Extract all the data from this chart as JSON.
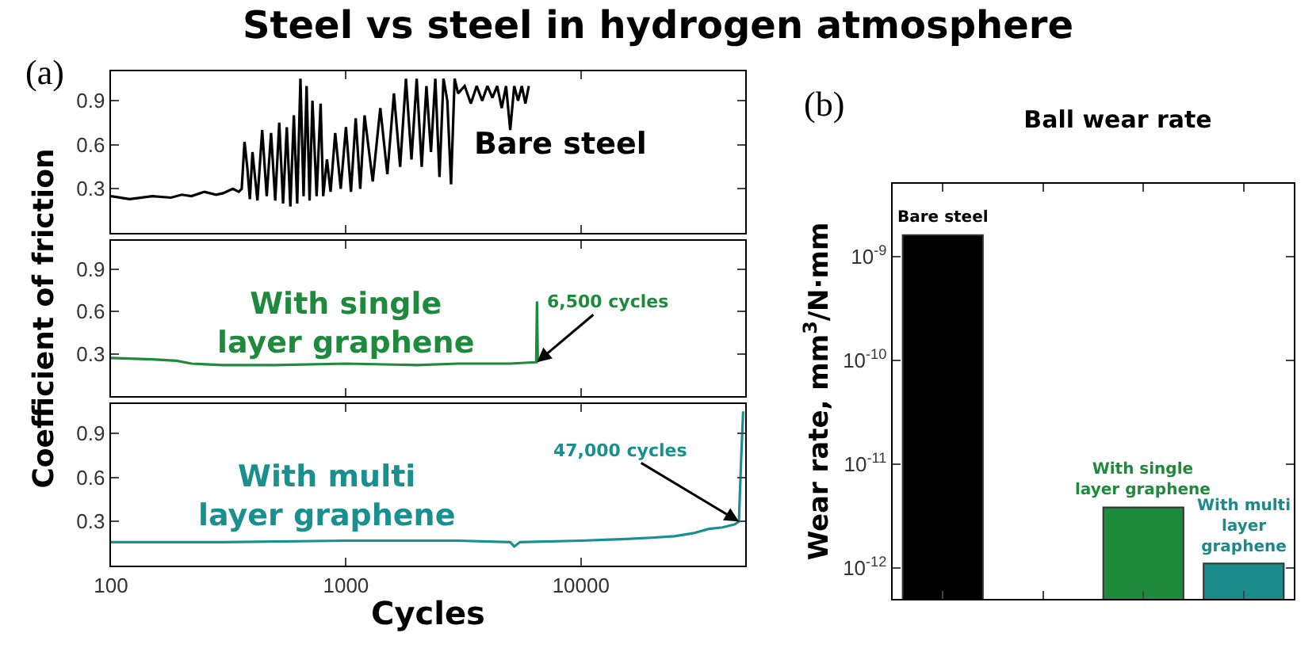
{
  "chart_data": [
    {
      "type": "line",
      "title": "Steel vs steel in hydrogen atmosphere",
      "annotations": [
        "(a)"
      ],
      "log": "x",
      "xlim": [
        100,
        50000
      ],
      "xticks": [
        100,
        1000,
        10000
      ],
      "ylim": [
        0,
        1.1
      ],
      "yticks": [
        0.3,
        0.6,
        0.9
      ],
      "tick_labels": "y",
      "series": [
        {
          "name": "Bare steel",
          "color": "#000000",
          "x": [
            100,
            120,
            150,
            180,
            200,
            220,
            250,
            280,
            300,
            330,
            350,
            360,
            370,
            380,
            390,
            400,
            420,
            440,
            460,
            480,
            500,
            520,
            540,
            560,
            580,
            600,
            620,
            640,
            660,
            680,
            700,
            720,
            750,
            780,
            800,
            830,
            860,
            900,
            950,
            1000,
            1050,
            1100,
            1150,
            1200,
            1300,
            1400,
            1500,
            1600,
            1700,
            1800,
            1900,
            2000,
            2100,
            2200,
            2300,
            2400,
            2500,
            2600,
            2700,
            2800,
            2900,
            3000,
            3200,
            3400,
            3600,
            3800,
            4000,
            4200,
            4400,
            4600,
            4800,
            5000,
            5200,
            5400,
            5600,
            5800,
            6000
          ],
          "values": [
            0.25,
            0.23,
            0.25,
            0.24,
            0.26,
            0.25,
            0.28,
            0.26,
            0.27,
            0.3,
            0.28,
            0.3,
            0.62,
            0.45,
            0.23,
            0.55,
            0.22,
            0.7,
            0.25,
            0.68,
            0.22,
            0.75,
            0.2,
            0.72,
            0.18,
            0.8,
            0.2,
            1.05,
            0.25,
            1.0,
            0.22,
            0.9,
            0.25,
            0.88,
            0.25,
            0.5,
            0.28,
            0.68,
            0.3,
            0.72,
            0.28,
            0.78,
            0.3,
            0.8,
            0.35,
            0.85,
            0.4,
            0.95,
            0.45,
            1.05,
            0.5,
            1.05,
            0.45,
            1.0,
            0.55,
            1.05,
            0.38,
            1.05,
            0.9,
            0.33,
            1.05,
            0.95,
            1.0,
            0.88,
            1.0,
            0.9,
            1.0,
            0.92,
            1.0,
            0.85,
            1.0,
            0.7,
            1.0,
            0.9,
            1.0,
            0.88,
            1.0
          ]
        }
      ]
    },
    {
      "type": "line",
      "ylabel": "Coefficient of friction",
      "annotations": [
        {
          "text": "6,500 cycles",
          "x": 6500,
          "y": 0.24
        }
      ],
      "log": "x",
      "xlim": [
        100,
        50000
      ],
      "xticks": [
        100,
        1000,
        10000
      ],
      "ylim": [
        0,
        1.1
      ],
      "yticks": [
        0.3,
        0.6,
        0.9
      ],
      "tick_labels": "y",
      "series": [
        {
          "name": "With single layer graphene",
          "color": "#1e8a3c",
          "x": [
            100,
            150,
            190,
            220,
            300,
            500,
            1000,
            2000,
            3000,
            5000,
            6400,
            6450,
            6500,
            6550
          ],
          "values": [
            0.27,
            0.26,
            0.25,
            0.23,
            0.22,
            0.22,
            0.23,
            0.22,
            0.23,
            0.23,
            0.24,
            0.24,
            0.67,
            0.24
          ]
        }
      ]
    },
    {
      "type": "line",
      "xlabel": "Cycles",
      "annotations": [
        {
          "text": "47,000 cycles",
          "x": 47000,
          "y": 0.3
        }
      ],
      "log": "x",
      "xlim": [
        100,
        50000
      ],
      "xticks": [
        100,
        1000,
        10000
      ],
      "ylim": [
        0,
        1.1
      ],
      "yticks": [
        0.3,
        0.6,
        0.9
      ],
      "series": [
        {
          "name": "With multi layer graphene",
          "color": "#1a8f8f",
          "x": [
            100,
            300,
            1000,
            3000,
            5000,
            5200,
            5500,
            10000,
            15000,
            20000,
            25000,
            30000,
            35000,
            40000,
            45000,
            47000,
            48000,
            49000
          ],
          "values": [
            0.16,
            0.16,
            0.17,
            0.17,
            0.16,
            0.13,
            0.16,
            0.17,
            0.18,
            0.19,
            0.2,
            0.22,
            0.25,
            0.26,
            0.28,
            0.3,
            0.7,
            1.05
          ]
        }
      ]
    },
    {
      "type": "bar",
      "title": "Ball wear rate",
      "ylabel": "Wear rate, mm$^{3}$/N·mm",
      "annotations": [
        "(b)"
      ],
      "log": "y",
      "tick_labels": "y",
      "categories": [
        "Bare steel",
        null,
        "With single layer graphene",
        "With multi layer graphene"
      ],
      "values": [
        1.6e-09,
        null,
        3.8e-12,
        1.1e-12
      ],
      "colors": [
        "#000000",
        null,
        "#1e8a3c",
        "#1a8a8a"
      ],
      "ylim": [
        5e-13,
        5e-09
      ],
      "yticks": [
        {
          "value": 1e-12,
          "label": "10$^{-12}$"
        },
        {
          "value": 1e-11,
          "label": "10$^{-11}$"
        },
        {
          "value": 1e-10,
          "label": "10$^{-10}$"
        },
        {
          "value": 1e-09,
          "label": "10$^{-9}$"
        }
      ]
    }
  ]
}
